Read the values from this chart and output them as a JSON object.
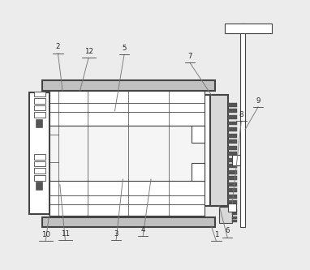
{
  "bg": "#ececec",
  "lc": "#444444",
  "fc": "#ffffff",
  "gc": "#c0c0c0",
  "dc": "#707070",
  "xlim": [
    0,
    10
  ],
  "ylim": [
    0,
    10
  ],
  "lw": 0.8,
  "tlw": 1.5
}
